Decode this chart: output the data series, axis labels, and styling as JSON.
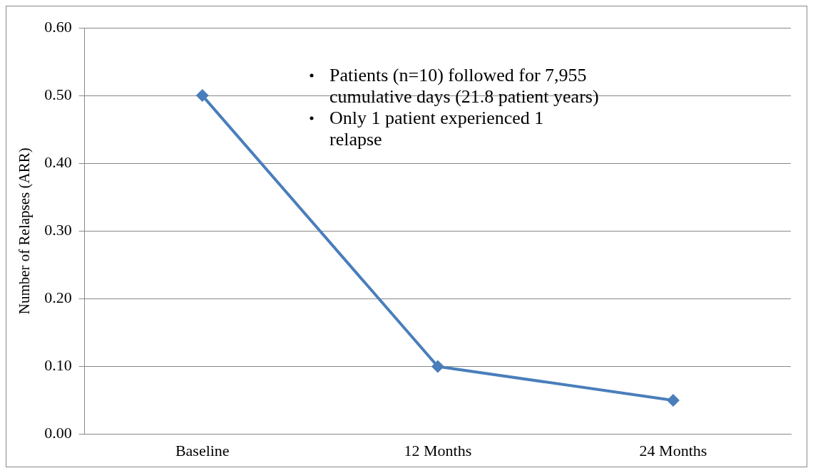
{
  "chart_data": {
    "type": "line",
    "ylabel": "Number of Relapses (ARR)",
    "categories": [
      "Baseline",
      "12 Months",
      "24 Months"
    ],
    "series": [
      {
        "color": "#4a7ebb",
        "values": [
          0.5,
          0.1,
          0.05
        ]
      }
    ],
    "ylim": [
      0,
      0.6
    ],
    "yticks": [
      {
        "value": 0,
        "label": "0.00"
      },
      {
        "value": 0.1,
        "label": "0.10"
      },
      {
        "value": 0.2,
        "label": "0.20"
      },
      {
        "value": 0.3,
        "label": "0.30"
      },
      {
        "value": 0.4,
        "label": "0.40"
      },
      {
        "value": 0.5,
        "label": "0.50"
      },
      {
        "value": 0.6,
        "label": "0.60"
      }
    ],
    "grid": "y",
    "marker": "diamond",
    "line_style": "solid",
    "legend": false,
    "annotations": [
      "Patients (n=10) followed for 7,955 cumulative days (21.8 patient years)",
      "Only 1 patient experienced 1 relapse"
    ]
  }
}
